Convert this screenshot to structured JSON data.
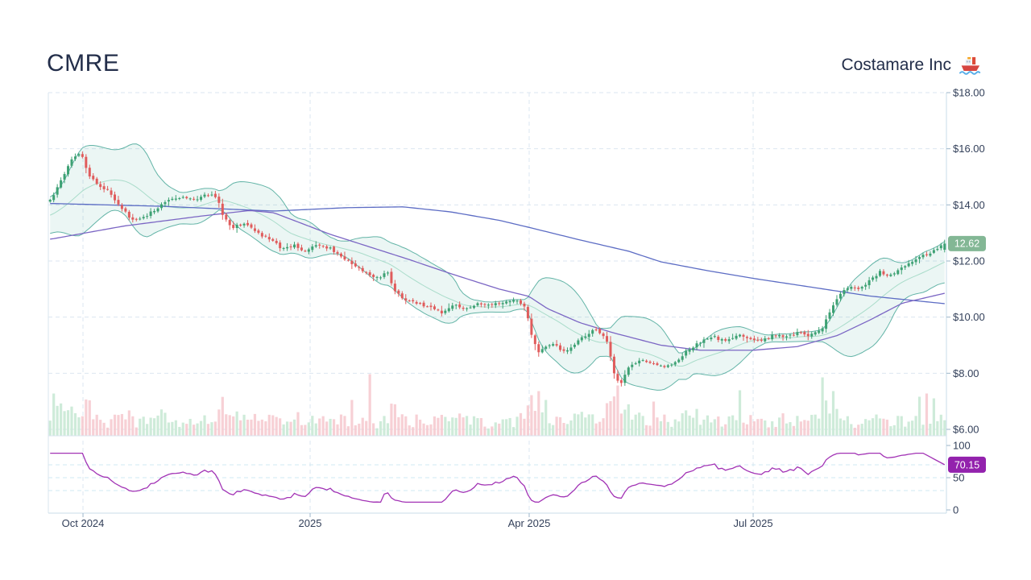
{
  "header": {
    "symbol": "CMRE",
    "company": "Costamare Inc"
  },
  "chart_data": {
    "type": "candlestick",
    "symbol": "CMRE",
    "company": "Costamare Inc",
    "timeframe": "daily, ~1 year (Sep 2024 - Sep 2025)",
    "candles": 250,
    "seed": 12,
    "last_price": "12.62",
    "price_axis": {
      "min": 6,
      "max": 18,
      "tick_step": 2,
      "labels": [
        "$18.00",
        "$16.00",
        "$14.00",
        "$12.00",
        "$10.00",
        "$8.00",
        "$6.00"
      ],
      "values": [
        18,
        16,
        14,
        12,
        10,
        8,
        6
      ]
    },
    "x_ticks": [
      {
        "label": "Oct 2024",
        "f": 0.0386
      },
      {
        "label": "2025",
        "f": 0.2915
      },
      {
        "label": "Apr 2025",
        "f": 0.5354
      },
      {
        "label": "Jul 2025",
        "f": 0.7848
      }
    ],
    "rsi_indicator": {
      "name": "RSI",
      "period": 14,
      "last": "70.15",
      "axis_labels": [
        "100",
        "50",
        "0"
      ],
      "axis_values": [
        100,
        50,
        0
      ],
      "gridlines": [
        70,
        50,
        30
      ]
    },
    "bollinger": {
      "window": 20,
      "mult": 2
    },
    "overlays": [
      "Bollinger Bands (20,2)",
      "SMA 20",
      "MA 50",
      "MA 200"
    ],
    "close_anchors": [
      [
        0.003,
        14.2
      ],
      [
        0.013,
        14.8
      ],
      [
        0.027,
        15.7
      ],
      [
        0.036,
        15.85
      ],
      [
        0.045,
        15.1
      ],
      [
        0.054,
        14.75
      ],
      [
        0.067,
        14.5
      ],
      [
        0.081,
        13.9
      ],
      [
        0.094,
        13.45
      ],
      [
        0.108,
        13.6
      ],
      [
        0.121,
        13.9
      ],
      [
        0.135,
        14.2
      ],
      [
        0.148,
        14.3
      ],
      [
        0.161,
        14.15
      ],
      [
        0.175,
        14.35
      ],
      [
        0.187,
        14.3
      ],
      [
        0.196,
        13.5
      ],
      [
        0.206,
        13.2
      ],
      [
        0.22,
        13.35
      ],
      [
        0.233,
        13.0
      ],
      [
        0.247,
        12.75
      ],
      [
        0.26,
        12.45
      ],
      [
        0.274,
        12.55
      ],
      [
        0.287,
        12.35
      ],
      [
        0.3,
        12.6
      ],
      [
        0.314,
        12.45
      ],
      [
        0.327,
        12.15
      ],
      [
        0.341,
        11.85
      ],
      [
        0.354,
        11.55
      ],
      [
        0.368,
        11.4
      ],
      [
        0.377,
        11.65
      ],
      [
        0.387,
        10.85
      ],
      [
        0.399,
        10.6
      ],
      [
        0.413,
        10.45
      ],
      [
        0.426,
        10.4
      ],
      [
        0.439,
        10.15
      ],
      [
        0.453,
        10.45
      ],
      [
        0.466,
        10.3
      ],
      [
        0.48,
        10.5
      ],
      [
        0.493,
        10.45
      ],
      [
        0.507,
        10.55
      ],
      [
        0.52,
        10.6
      ],
      [
        0.531,
        10.35
      ],
      [
        0.538,
        9.4
      ],
      [
        0.545,
        8.7
      ],
      [
        0.554,
        8.95
      ],
      [
        0.563,
        9.1
      ],
      [
        0.572,
        8.8
      ],
      [
        0.581,
        8.85
      ],
      [
        0.59,
        9.15
      ],
      [
        0.599,
        9.35
      ],
      [
        0.608,
        9.55
      ],
      [
        0.617,
        9.4
      ],
      [
        0.621,
        9.3
      ],
      [
        0.63,
        8.0
      ],
      [
        0.637,
        7.6
      ],
      [
        0.646,
        8.2
      ],
      [
        0.659,
        8.45
      ],
      [
        0.673,
        8.35
      ],
      [
        0.686,
        8.2
      ],
      [
        0.7,
        8.45
      ],
      [
        0.713,
        8.85
      ],
      [
        0.726,
        9.1
      ],
      [
        0.74,
        9.3
      ],
      [
        0.753,
        9.15
      ],
      [
        0.767,
        9.35
      ],
      [
        0.78,
        9.25
      ],
      [
        0.794,
        9.2
      ],
      [
        0.807,
        9.35
      ],
      [
        0.821,
        9.3
      ],
      [
        0.834,
        9.45
      ],
      [
        0.848,
        9.35
      ],
      [
        0.861,
        9.55
      ],
      [
        0.872,
        10.3
      ],
      [
        0.883,
        10.9
      ],
      [
        0.893,
        11.1
      ],
      [
        0.904,
        11.0
      ],
      [
        0.915,
        11.3
      ],
      [
        0.926,
        11.6
      ],
      [
        0.936,
        11.45
      ],
      [
        0.947,
        11.65
      ],
      [
        0.958,
        11.9
      ],
      [
        0.969,
        12.1
      ],
      [
        0.979,
        12.25
      ],
      [
        0.99,
        12.45
      ],
      [
        0.997,
        12.62
      ]
    ],
    "ma50_anchors": [
      [
        0.003,
        12.78
      ],
      [
        0.085,
        13.25
      ],
      [
        0.17,
        13.6
      ],
      [
        0.224,
        13.8
      ],
      [
        0.251,
        13.72
      ],
      [
        0.314,
        12.95
      ],
      [
        0.401,
        12.06
      ],
      [
        0.448,
        11.55
      ],
      [
        0.502,
        11.0
      ],
      [
        0.535,
        10.74
      ],
      [
        0.556,
        10.3
      ],
      [
        0.592,
        9.8
      ],
      [
        0.628,
        9.45
      ],
      [
        0.682,
        9.0
      ],
      [
        0.726,
        8.82
      ],
      [
        0.785,
        8.82
      ],
      [
        0.834,
        8.95
      ],
      [
        0.879,
        9.35
      ],
      [
        0.915,
        9.9
      ],
      [
        0.951,
        10.5
      ],
      [
        0.978,
        10.7
      ],
      [
        0.998,
        10.85
      ]
    ],
    "ma200_anchors": [
      [
        0.003,
        14.05
      ],
      [
        0.126,
        13.95
      ],
      [
        0.251,
        13.78
      ],
      [
        0.332,
        13.9
      ],
      [
        0.395,
        13.93
      ],
      [
        0.448,
        13.75
      ],
      [
        0.502,
        13.45
      ],
      [
        0.535,
        13.2
      ],
      [
        0.592,
        12.75
      ],
      [
        0.646,
        12.35
      ],
      [
        0.682,
        11.97
      ],
      [
        0.735,
        11.65
      ],
      [
        0.785,
        11.38
      ],
      [
        0.843,
        11.1
      ],
      [
        0.915,
        10.75
      ],
      [
        0.998,
        10.48
      ]
    ],
    "volume_spikes": [
      [
        1,
        52
      ],
      [
        84,
        44
      ],
      [
        89,
        76
      ],
      [
        134,
        50
      ],
      [
        136,
        55
      ],
      [
        138,
        44
      ],
      [
        155,
        40
      ],
      [
        158,
        62
      ],
      [
        168,
        42
      ],
      [
        192,
        56
      ],
      [
        215,
        72
      ],
      [
        218,
        55
      ],
      [
        242,
        48
      ],
      [
        244,
        52
      ],
      [
        246,
        46
      ]
    ]
  },
  "colors": {
    "up": "#3da173",
    "down": "#e05c5c",
    "band_line": "#3fa392",
    "band_fill": "#3fa392",
    "band_fill_opacity": 0.1,
    "sma20": "#a9dcca",
    "ma50": "#7b66c4",
    "ma200": "#5c6cc4",
    "rsi_line": "#a233b5",
    "vol_up": "#c5e7d2",
    "vol_down": "#f6c8ce",
    "grid": "#dbe6f0",
    "grid_rsi": "#cfe9f3",
    "axis_text": "#33405a",
    "border": "#d9e5ef",
    "border_right": "#c9dcea",
    "tick": "#9db6ca",
    "badge_price": "#83b795",
    "badge_rsi": "#9322ad",
    "badge_text": "#ffffff",
    "title": "#232e4a"
  }
}
